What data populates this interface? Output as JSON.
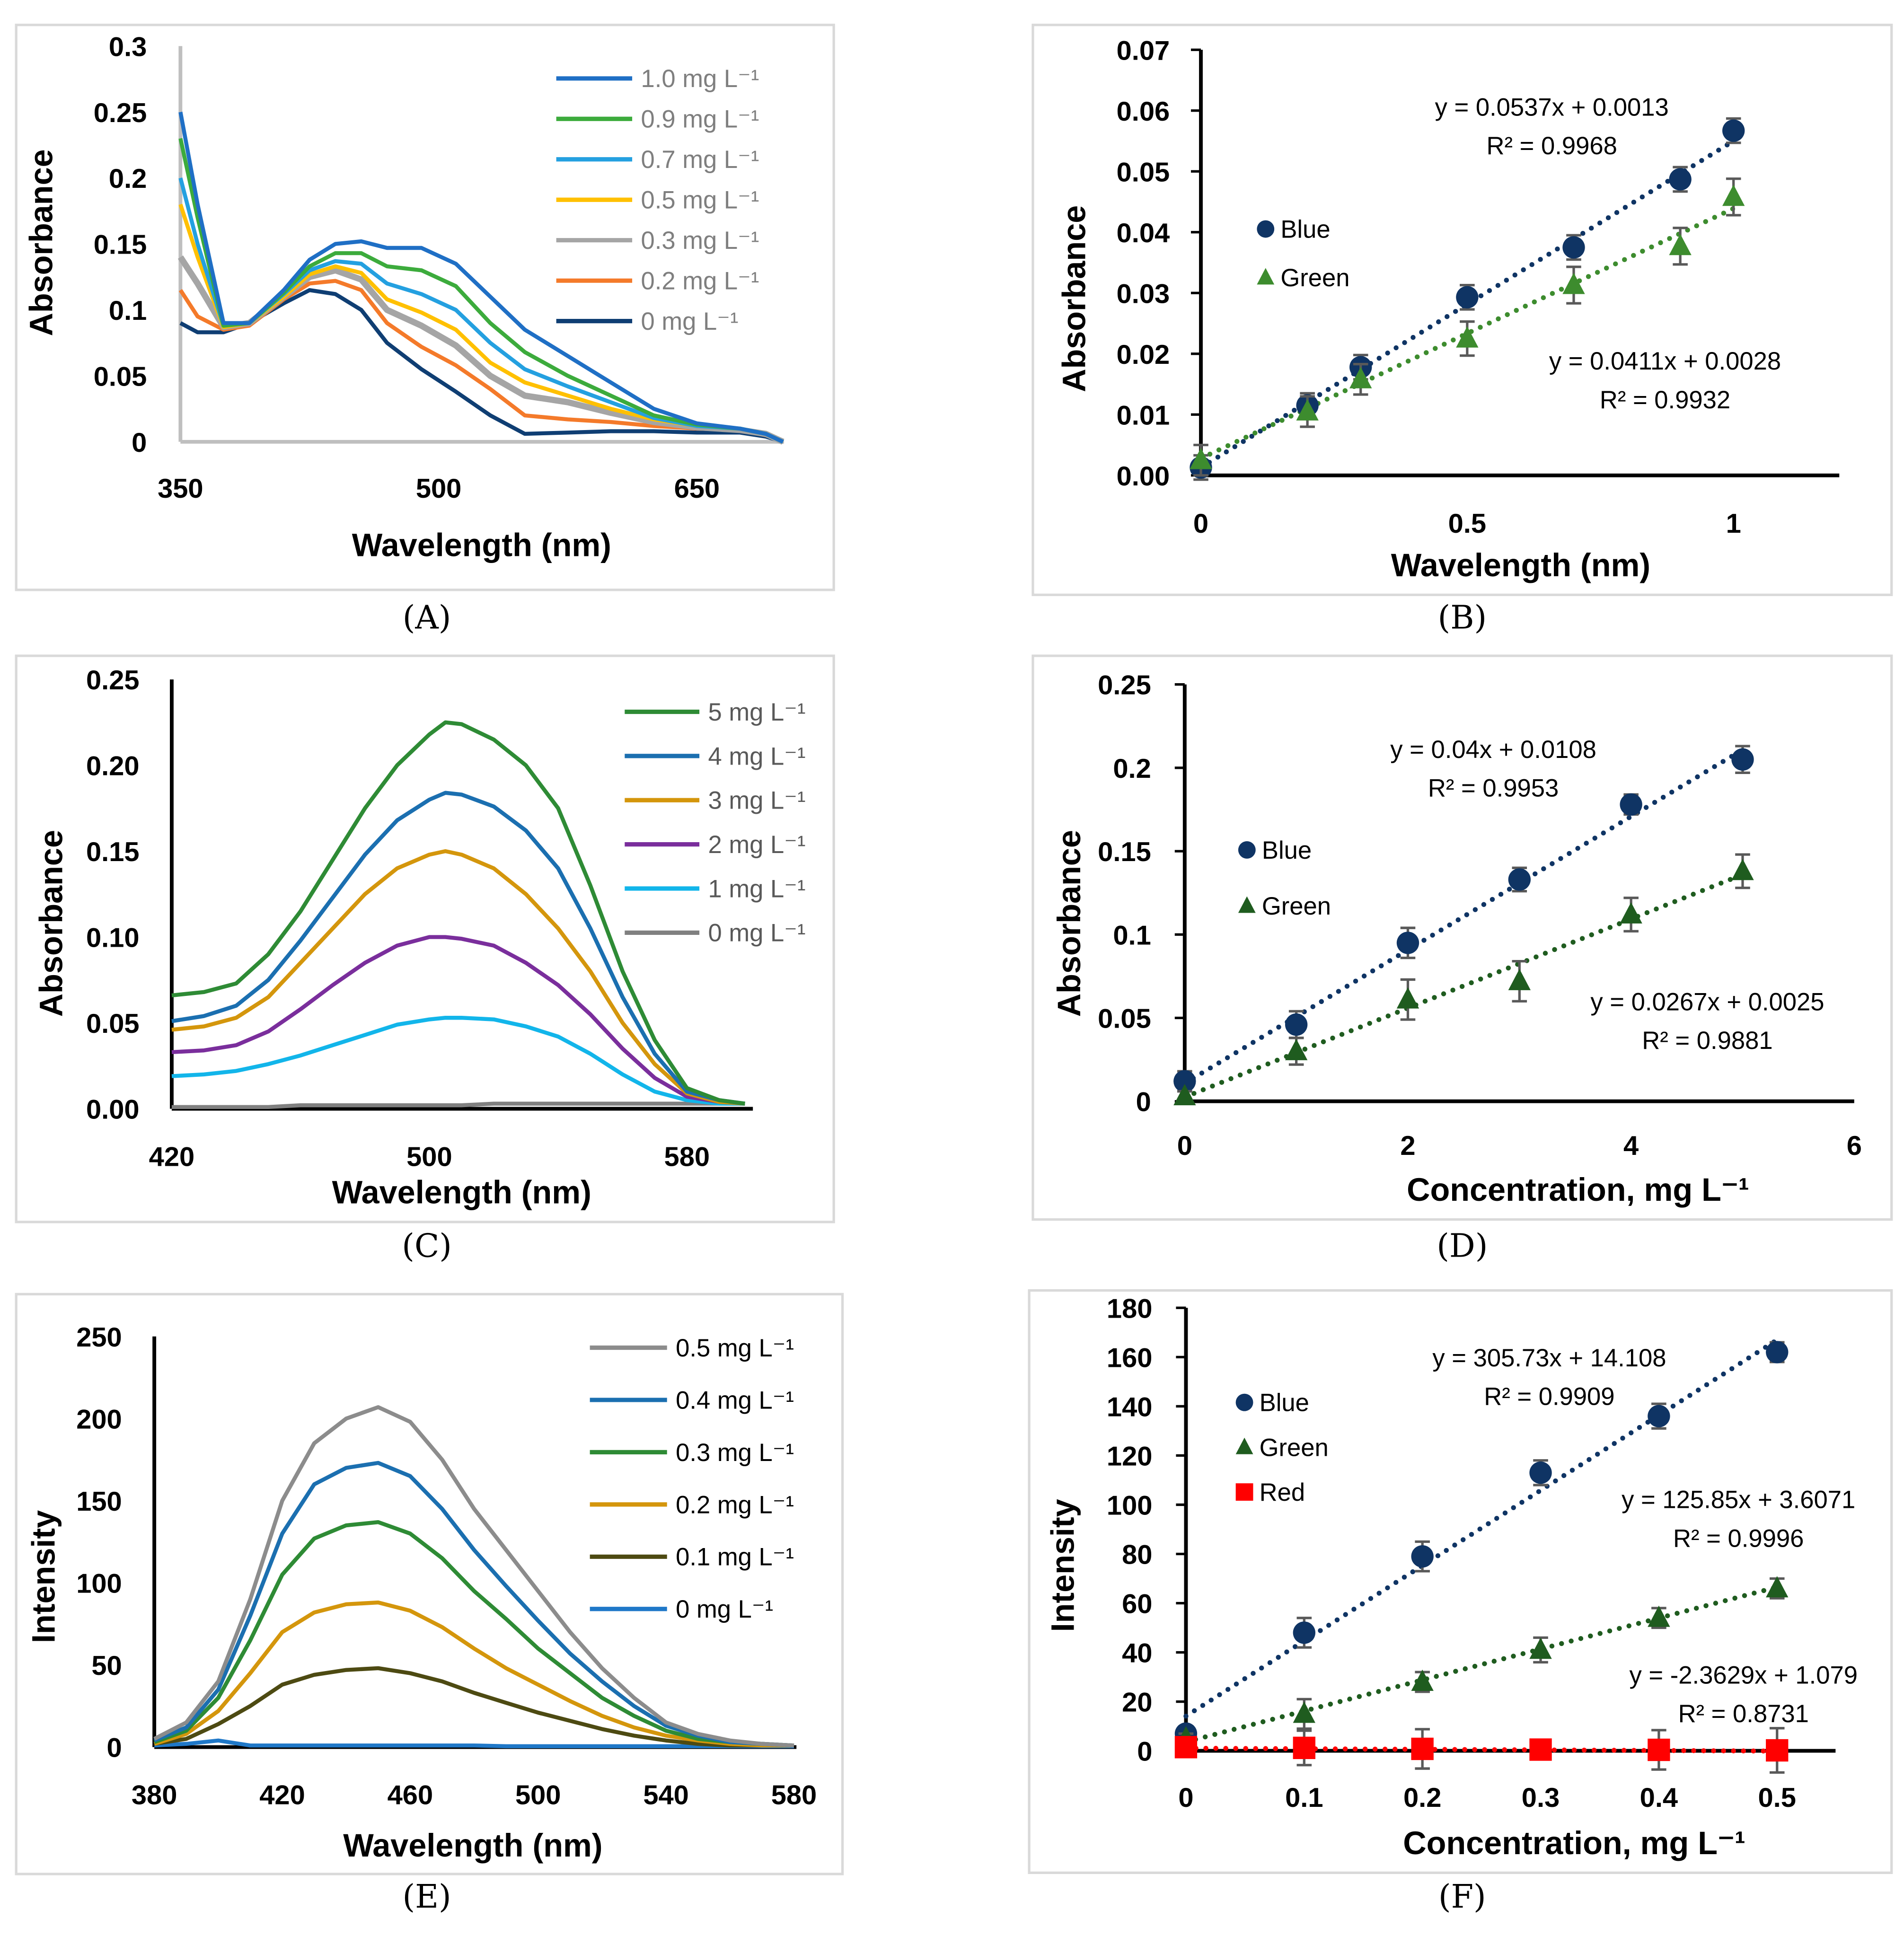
{
  "chart_data": [
    {
      "id": "A",
      "type": "line",
      "panel_label": "(A)",
      "xlabel": "Wavelength (nm)",
      "ylabel": "Absorbance",
      "xlim": [
        350,
        700
      ],
      "ylim": [
        0,
        0.3
      ],
      "xticks": [
        350,
        500,
        650
      ],
      "yticks": [
        "0",
        "0.05",
        "0.1",
        "0.15",
        "0.2",
        "0.25",
        "0.3"
      ],
      "x": [
        350,
        360,
        375,
        390,
        410,
        425,
        440,
        455,
        470,
        490,
        510,
        530,
        550,
        575,
        600,
        625,
        650,
        675,
        690,
        700
      ],
      "series": [
        {
          "name": "1.0 mg L⁻¹",
          "color": "#1f6fc5",
          "y": [
            0.25,
            0.18,
            0.09,
            0.09,
            0.115,
            0.138,
            0.15,
            0.152,
            0.147,
            0.147,
            0.135,
            0.11,
            0.085,
            0.065,
            0.045,
            0.025,
            0.014,
            0.01,
            0.006,
            0
          ]
        },
        {
          "name": "0.9 mg L⁻¹",
          "color": "#3cab3c",
          "y": [
            0.23,
            0.17,
            0.088,
            0.09,
            0.113,
            0.133,
            0.143,
            0.143,
            0.133,
            0.13,
            0.118,
            0.09,
            0.068,
            0.05,
            0.035,
            0.02,
            0.013,
            0.01,
            0.006,
            0
          ]
        },
        {
          "name": "0.7 mg L⁻¹",
          "color": "#24a0e0",
          "y": [
            0.2,
            0.15,
            0.088,
            0.09,
            0.112,
            0.13,
            0.137,
            0.135,
            0.12,
            0.112,
            0.1,
            0.075,
            0.055,
            0.042,
            0.03,
            0.018,
            0.012,
            0.01,
            0.006,
            0
          ]
        },
        {
          "name": "0.5 mg L⁻¹",
          "color": "#ffc000",
          "y": [
            0.18,
            0.14,
            0.087,
            0.09,
            0.11,
            0.127,
            0.133,
            0.128,
            0.108,
            0.098,
            0.085,
            0.06,
            0.045,
            0.035,
            0.025,
            0.017,
            0.012,
            0.01,
            0.006,
            0
          ]
        },
        {
          "name": "0.3 mg L⁻¹",
          "color": "#a5a5a5",
          "y": [
            0.14,
            0.12,
            0.087,
            0.09,
            0.11,
            0.125,
            0.13,
            0.123,
            0.1,
            0.088,
            0.073,
            0.05,
            0.035,
            0.03,
            0.022,
            0.015,
            0.011,
            0.009,
            0.006,
            0
          ]
        },
        {
          "name": "0.2 mg L⁻¹",
          "color": "#f47a2a",
          "y": [
            0.115,
            0.095,
            0.085,
            0.088,
            0.108,
            0.12,
            0.122,
            0.115,
            0.09,
            0.072,
            0.058,
            0.04,
            0.02,
            0.017,
            0.015,
            0.012,
            0.01,
            0.009,
            0.005,
            0
          ]
        },
        {
          "name": "0 mg L⁻¹",
          "color": "#0f3e73",
          "y": [
            0.09,
            0.083,
            0.083,
            0.09,
            0.105,
            0.115,
            0.112,
            0.1,
            0.075,
            0.055,
            0.038,
            0.02,
            0.006,
            0.007,
            0.008,
            0.008,
            0.007,
            0.007,
            0.004,
            0
          ]
        }
      ]
    },
    {
      "id": "B",
      "type": "scatter",
      "panel_label": "(B)",
      "xlabel": "Wavelength (nm)",
      "ylabel": "Absorbance",
      "xlim": [
        0,
        1.2
      ],
      "ylim": [
        0,
        0.07
      ],
      "xticks": [
        "0",
        "0.5",
        "1"
      ],
      "xtick_values": [
        0,
        0.5,
        1
      ],
      "yticks": [
        "0.00",
        "0.01",
        "0.02",
        "0.03",
        "0.04",
        "0.05",
        "0.06",
        "0.07"
      ],
      "series": [
        {
          "name": "Blue",
          "color": "#0f3464",
          "marker": "circle",
          "x": [
            0,
            0.2,
            0.3,
            0.5,
            0.7,
            0.9,
            1.0
          ],
          "y": [
            0.0013,
            0.0115,
            0.0178,
            0.0293,
            0.0375,
            0.0487,
            0.0567
          ],
          "err": [
            0.002,
            0.002,
            0.002,
            0.002,
            0.002,
            0.002,
            0.002
          ],
          "trend": {
            "slope": 0.0537,
            "intercept": 0.0013,
            "equation": "y = 0.0537x + 0.0013",
            "r2": "R² = 0.9968"
          }
        },
        {
          "name": "Green",
          "color": "#3d8c2e",
          "marker": "triangle",
          "x": [
            0,
            0.2,
            0.3,
            0.5,
            0.7,
            0.9,
            1.0
          ],
          "y": [
            0.0025,
            0.0105,
            0.0158,
            0.0225,
            0.0313,
            0.0377,
            0.0458
          ],
          "err": [
            0.0025,
            0.0025,
            0.0025,
            0.0028,
            0.003,
            0.003,
            0.003
          ],
          "trend": {
            "slope": 0.0411,
            "intercept": 0.0028,
            "equation": "y = 0.0411x + 0.0028",
            "r2": "R² = 0.9932"
          }
        }
      ]
    },
    {
      "id": "C",
      "type": "line",
      "panel_label": "(C)",
      "xlabel": "Wavelength (nm)",
      "ylabel": "Absorbance",
      "xlim": [
        420,
        600
      ],
      "ylim": [
        0,
        0.25
      ],
      "xticks": [
        420,
        500,
        580
      ],
      "yticks": [
        "0.00",
        "0.05",
        "0.10",
        "0.15",
        "0.20",
        "0.25"
      ],
      "x": [
        420,
        430,
        440,
        450,
        460,
        470,
        480,
        490,
        500,
        505,
        510,
        520,
        530,
        540,
        550,
        560,
        570,
        580,
        590,
        598
      ],
      "series": [
        {
          "name": "5 mg L⁻¹",
          "color": "#2e8b35",
          "y": [
            0.066,
            0.068,
            0.073,
            0.09,
            0.115,
            0.145,
            0.175,
            0.2,
            0.218,
            0.225,
            0.224,
            0.215,
            0.2,
            0.175,
            0.13,
            0.08,
            0.04,
            0.012,
            0.005,
            0.003
          ]
        },
        {
          "name": "4 mg L⁻¹",
          "color": "#1b6fb0",
          "y": [
            0.051,
            0.054,
            0.06,
            0.075,
            0.098,
            0.123,
            0.148,
            0.168,
            0.18,
            0.184,
            0.183,
            0.176,
            0.162,
            0.14,
            0.105,
            0.065,
            0.032,
            0.01,
            0.005,
            0.003
          ]
        },
        {
          "name": "3 mg L⁻¹",
          "color": "#d4960c",
          "y": [
            0.046,
            0.048,
            0.053,
            0.065,
            0.085,
            0.105,
            0.125,
            0.14,
            0.148,
            0.15,
            0.148,
            0.14,
            0.125,
            0.105,
            0.08,
            0.05,
            0.026,
            0.009,
            0.004,
            0.003
          ]
        },
        {
          "name": "2 mg L⁻¹",
          "color": "#7a2e9c",
          "y": [
            0.033,
            0.034,
            0.037,
            0.045,
            0.058,
            0.072,
            0.085,
            0.095,
            0.1,
            0.1,
            0.099,
            0.095,
            0.085,
            0.072,
            0.055,
            0.035,
            0.018,
            0.007,
            0.004,
            0.003
          ]
        },
        {
          "name": "1 mg L⁻¹",
          "color": "#12b5ea",
          "y": [
            0.019,
            0.02,
            0.022,
            0.026,
            0.031,
            0.037,
            0.043,
            0.049,
            0.052,
            0.053,
            0.053,
            0.052,
            0.048,
            0.042,
            0.032,
            0.02,
            0.01,
            0.005,
            0.003,
            0.003
          ]
        },
        {
          "name": "0 mg L⁻¹",
          "color": "#808080",
          "y": [
            0.001,
            0.001,
            0.001,
            0.001,
            0.002,
            0.002,
            0.002,
            0.002,
            0.002,
            0.002,
            0.002,
            0.003,
            0.003,
            0.003,
            0.003,
            0.003,
            0.003,
            0.003,
            0.003,
            0.003
          ]
        }
      ]
    },
    {
      "id": "D",
      "type": "scatter",
      "panel_label": "(D)",
      "xlabel": "Concentration, mg L⁻¹",
      "ylabel": "Absorbance",
      "xlim": [
        0,
        6
      ],
      "ylim": [
        0,
        0.25
      ],
      "xticks": [
        "0",
        "2",
        "4",
        "6"
      ],
      "xtick_values": [
        0,
        2,
        4,
        6
      ],
      "yticks": [
        "0",
        "0.05",
        "0.1",
        "0.15",
        "0.2",
        "0.25"
      ],
      "series": [
        {
          "name": "Blue",
          "color": "#0f3464",
          "marker": "circle",
          "x": [
            0,
            1,
            2,
            3,
            4,
            5
          ],
          "y": [
            0.012,
            0.046,
            0.095,
            0.133,
            0.178,
            0.205
          ],
          "err": [
            0.006,
            0.008,
            0.009,
            0.007,
            0.006,
            0.008
          ],
          "trend": {
            "slope": 0.04,
            "intercept": 0.0108,
            "equation": "y = 0.04x + 0.0108",
            "r2": "R² = 0.9953"
          }
        },
        {
          "name": "Green",
          "color": "#1f5c1f",
          "marker": "triangle",
          "x": [
            0,
            1,
            2,
            3,
            4,
            5
          ],
          "y": [
            0.003,
            0.03,
            0.061,
            0.072,
            0.112,
            0.138
          ],
          "err": [
            0.003,
            0.008,
            0.012,
            0.012,
            0.01,
            0.01
          ],
          "trend": {
            "slope": 0.0267,
            "intercept": 0.0025,
            "equation": "y = 0.0267x + 0.0025",
            "r2": "R² = 0.9881"
          }
        }
      ]
    },
    {
      "id": "E",
      "type": "line",
      "panel_label": "(E)",
      "xlabel": "Wavelength (nm)",
      "ylabel": "Intensity",
      "xlim": [
        380,
        580
      ],
      "ylim": [
        0,
        250
      ],
      "xticks": [
        380,
        420,
        460,
        500,
        540,
        580
      ],
      "yticks": [
        "0",
        "50",
        "100",
        "150",
        "200",
        "250"
      ],
      "x": [
        380,
        390,
        400,
        410,
        420,
        430,
        440,
        450,
        460,
        470,
        480,
        490,
        500,
        510,
        520,
        530,
        540,
        550,
        560,
        570,
        580
      ],
      "series": [
        {
          "name": "0.5 mg L⁻¹",
          "color": "#8c8c8c",
          "y": [
            5,
            15,
            40,
            90,
            150,
            185,
            200,
            207,
            198,
            175,
            145,
            120,
            95,
            70,
            48,
            30,
            15,
            8,
            4,
            2,
            1
          ]
        },
        {
          "name": "0.4 mg L⁻¹",
          "color": "#1b6fb0",
          "y": [
            4,
            12,
            35,
            80,
            130,
            160,
            170,
            173,
            165,
            145,
            120,
            98,
            77,
            57,
            40,
            25,
            13,
            7,
            3,
            2,
            1
          ]
        },
        {
          "name": "0.3 mg L⁻¹",
          "color": "#2e8b35",
          "y": [
            3,
            10,
            30,
            65,
            105,
            127,
            135,
            137,
            130,
            115,
            95,
            78,
            60,
            45,
            30,
            19,
            10,
            5,
            3,
            2,
            1
          ]
        },
        {
          "name": "0.2 mg L⁻¹",
          "color": "#d4960c",
          "y": [
            2,
            8,
            22,
            45,
            70,
            82,
            87,
            88,
            83,
            73,
            60,
            48,
            38,
            28,
            19,
            12,
            7,
            4,
            2,
            1,
            1
          ]
        },
        {
          "name": "0.1 mg L⁻¹",
          "color": "#4d4a12",
          "y": [
            2,
            5,
            14,
            25,
            38,
            44,
            47,
            48,
            45,
            40,
            33,
            27,
            21,
            16,
            11,
            7,
            4,
            2,
            1,
            1,
            1
          ]
        },
        {
          "name": "0 mg L⁻¹",
          "color": "#1f78c8",
          "y": [
            1,
            2,
            4,
            1,
            1,
            1,
            1,
            1,
            1,
            1,
            1,
            0.5,
            0.5,
            0.5,
            0.5,
            0.5,
            0.5,
            0.5,
            0.5,
            0.5,
            0.5
          ]
        }
      ]
    },
    {
      "id": "F",
      "type": "scatter",
      "panel_label": "(F)",
      "xlabel": "Concentration, mg L⁻¹",
      "ylabel": "Intensity",
      "xlim": [
        0,
        0.55
      ],
      "ylim": [
        0,
        180
      ],
      "xticks": [
        "0",
        "0.1",
        "0.2",
        "0.3",
        "0.4",
        "0.5"
      ],
      "xtick_values": [
        0,
        0.1,
        0.2,
        0.3,
        0.4,
        0.5
      ],
      "yticks": [
        "0",
        "20",
        "40",
        "60",
        "80",
        "100",
        "120",
        "140",
        "160",
        "180"
      ],
      "series": [
        {
          "name": "Blue",
          "color": "#0f3464",
          "marker": "circle",
          "x": [
            0,
            0.1,
            0.2,
            0.3,
            0.4,
            0.5
          ],
          "y": [
            7,
            48,
            79,
            113,
            136,
            162
          ],
          "err": [
            3,
            6,
            6,
            5,
            5,
            4
          ],
          "trend": {
            "slope": 305.73,
            "intercept": 14.108,
            "equation": "y = 305.73x + 14.108",
            "r2": "R² = 0.9909"
          }
        },
        {
          "name": "Green",
          "color": "#1f5c1f",
          "marker": "triangle",
          "x": [
            0,
            0.1,
            0.2,
            0.3,
            0.4,
            0.5
          ],
          "y": [
            5,
            15,
            28,
            41,
            54,
            66
          ],
          "err": [
            2,
            6,
            4,
            5,
            4,
            4
          ],
          "trend": {
            "slope": 125.85,
            "intercept": 3.6071,
            "equation": "y = 125.85x + 3.6071",
            "r2": "R² = 0.9996"
          }
        },
        {
          "name": "Red",
          "color": "#ff0000",
          "marker": "square",
          "x": [
            0,
            0.1,
            0.2,
            0.3,
            0.4,
            0.5
          ],
          "y": [
            1.5,
            1.2,
            0.8,
            0.5,
            0.4,
            0.2
          ],
          "err": [
            2,
            7,
            8,
            4,
            8,
            9
          ],
          "trend": {
            "slope": -2.3629,
            "intercept": 1.079,
            "equation": "y = -2.3629x + 1.079",
            "r2": "R² = 0.8731"
          }
        }
      ]
    }
  ]
}
